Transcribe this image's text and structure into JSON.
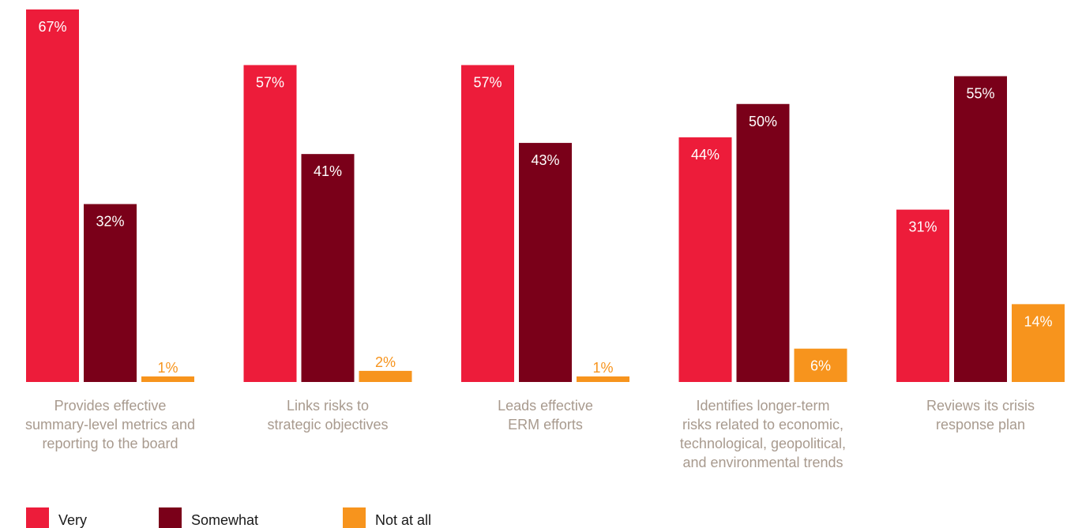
{
  "chart_data": {
    "type": "bar",
    "categories": [
      [
        "Provides effective",
        "summary-level metrics and",
        "reporting to the board"
      ],
      [
        "Links risks to",
        "strategic objectives"
      ],
      [
        "Leads effective",
        "ERM efforts"
      ],
      [
        "Identifies longer-term",
        "risks related to economic,",
        "technological, geopolitical,",
        "and environmental trends"
      ],
      [
        "Reviews its crisis",
        "response plan"
      ]
    ],
    "series": [
      {
        "name": "Very",
        "color": "#ed1c3a",
        "values": [
          67,
          57,
          57,
          44,
          31
        ],
        "labels": [
          "67%",
          "57%",
          "57%",
          "44%",
          "31%"
        ]
      },
      {
        "name": "Somewhat",
        "color": "#7a0019",
        "values": [
          32,
          41,
          43,
          50,
          55
        ],
        "labels": [
          "32%",
          "41%",
          "43%",
          "50%",
          "55%"
        ]
      },
      {
        "name": "Not at all",
        "color": "#f7941d",
        "values": [
          1,
          2,
          1,
          6,
          14
        ],
        "labels": [
          "1%",
          "2%",
          "1%",
          "6%",
          "14%"
        ]
      }
    ],
    "ylim": [
      0,
      67
    ],
    "grid": false,
    "legend_position": "bottom-left"
  },
  "colors": {
    "category_label": "#a89a8e",
    "bar_label_inside": "#ffffff"
  }
}
